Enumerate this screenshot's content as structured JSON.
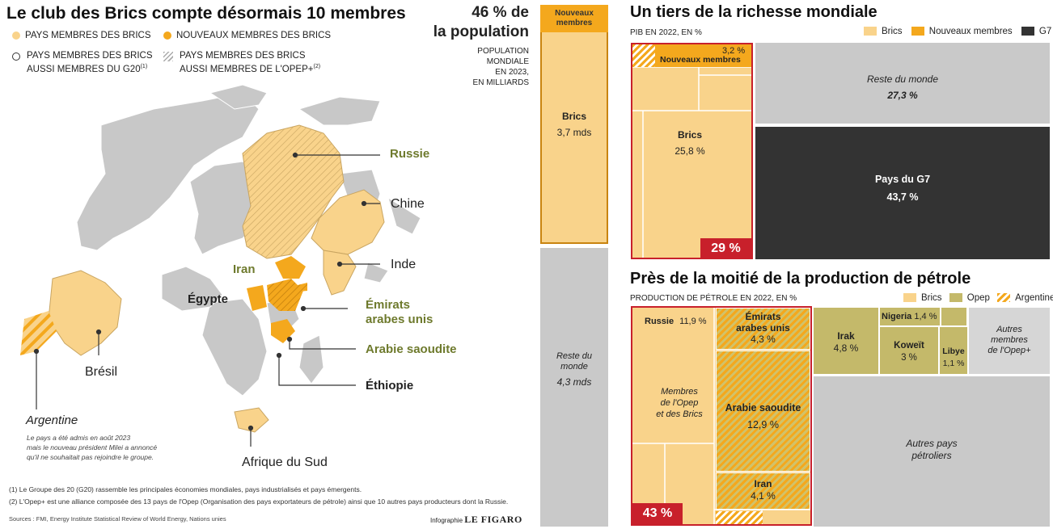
{
  "left": {
    "title": "Le club des Brics compte désormais 10 membres",
    "legend": [
      {
        "label": "PAYS MEMBRES DES BRICS",
        "color": "#f9d38b",
        "icon": "circle-filled-light"
      },
      {
        "label": "NOUVEAUX MEMBRES DES BRICS",
        "color": "#f4a81d",
        "icon": "circle-filled-orange"
      },
      {
        "label_line1": "PAYS MEMBRES DES BRICS",
        "label_line2": "AUSSI MEMBRES DU G20",
        "sup": "(1)",
        "icon": "circle-outline"
      },
      {
        "label_line1": "PAYS MEMBRES DES BRICS",
        "label_line2": "AUSSI MEMBRES DE L'OPEP+",
        "sup": "(2)",
        "icon": "hatch-icon"
      }
    ],
    "map_labels": {
      "russie": "Russie",
      "chine": "Chine",
      "inde": "Inde",
      "iran": "Iran",
      "egypte": "Égypte",
      "emirats": "Émirats",
      "emirats2": "arabes unis",
      "arabie": "Arabie saoudite",
      "ethiopie": "Éthiopie",
      "bresil": "Brésil",
      "afrique": "Afrique du Sud",
      "argentine": "Argentine"
    },
    "argentine_note": [
      "Le pays a été admis en août 2023",
      "mais le nouveau président Milei a annoncé",
      "qu'il ne souhaitait pas rejoindre le groupe."
    ],
    "footnotes": [
      "(1) Le Groupe des 20 (G20) rassemble les principales économies mondiales, pays industrialisés et pays émergents.",
      "(2) L'Opep+ est une alliance composée des 13 pays de l'Opep (Organisation des pays exportateurs de pétrole) ainsi que 10 autres pays producteurs dont la Russie."
    ],
    "sources": "Sources : FMI, Energy Institute Statistical Review of World Energy, Nations unies",
    "credit_prefix": "Infographie",
    "credit_brand": "LE FIGARO"
  },
  "population": {
    "headline1": "46 % de",
    "headline2": "la population",
    "sub": [
      "POPULATION",
      "MONDIALE",
      "EN 2023,",
      "EN MILLIARDS"
    ],
    "new_members": [
      "Nouveaux",
      "membres"
    ],
    "brics_label": "Brics",
    "brics_value": "3,7 mds",
    "rest_label": [
      "Reste du",
      "monde"
    ],
    "rest_value": "4,3 mds"
  },
  "gdp": {
    "title": "Un tiers de la richesse mondiale",
    "sub": "PIB EN 2022, EN %",
    "legend": [
      {
        "label": "Brics",
        "color": "#f9d38b"
      },
      {
        "label": "Nouveaux membres",
        "color": "#f4a81d"
      },
      {
        "label": "G7",
        "color": "#333333"
      }
    ],
    "badge": "29 %"
  },
  "oil": {
    "title": "Près de la moitié de la production de pétrole",
    "sub": "PRODUCTION DE PÉTROLE EN 2022, EN %",
    "legend": [
      {
        "label": "Brics",
        "color": "#f9d38b"
      },
      {
        "label": "Opep",
        "color": "#c4b96a"
      },
      {
        "label": "Argentine",
        "color": "#f4a81d"
      }
    ],
    "badge": "43 %",
    "labels": {
      "russie": "Russie",
      "russie_val": "11,9 %",
      "membres": [
        "Membres",
        "de l'Opep",
        "et des Brics"
      ],
      "emirats": [
        "Émirats",
        "arabes unis"
      ],
      "emirats_val": "4,3 %",
      "arabie": "Arabie saoudite",
      "arabie_val": "12,9 %",
      "iran": "Iran",
      "iran_val": "4,1 %",
      "irak": "Irak",
      "irak_val": "4,8 %",
      "nigeria": "Nigeria",
      "nigeria_val": "1,4 %",
      "koweit": "Koweït",
      "koweit_val": "3 %",
      "libye": "Libye",
      "libye_val": "1,1 %",
      "autres_opep": [
        "Autres",
        "membres",
        "de l'Opep+"
      ],
      "autres_pays": [
        "Autres pays",
        "pétroliers"
      ]
    }
  },
  "chart_data": [
    {
      "type": "bar",
      "title": "46 % de la population",
      "subtitle": "POPULATION MONDIALE EN 2023, EN MILLIARDS",
      "categories": [
        "Nouveaux membres",
        "Brics",
        "Reste du monde"
      ],
      "values_labels": [
        "",
        "3,7 mds",
        "4,3 mds"
      ],
      "values": [
        0.2,
        3.7,
        4.3
      ],
      "stacked": true
    },
    {
      "type": "heatmap",
      "title": "Un tiers de la richesse mondiale",
      "subtitle": "PIB EN 2022, EN %",
      "categories": [
        "Brics",
        "Nouveaux membres",
        "Reste du monde",
        "Pays du G7"
      ],
      "values": [
        25.8,
        3.2,
        27.3,
        43.7
      ],
      "value_labels": [
        "25,8 %",
        "3,2 %",
        "27,3 %",
        "43,7 %"
      ],
      "total_brics": 29
    },
    {
      "type": "heatmap",
      "title": "Près de la moitié de la production de pétrole",
      "subtitle": "PRODUCTION DE PÉTROLE EN 2022, EN %",
      "categories": [
        "Russie",
        "Émirats arabes unis",
        "Arabie saoudite",
        "Iran",
        "Irak",
        "Nigeria",
        "Koweït",
        "Libye"
      ],
      "values": [
        11.9,
        4.3,
        12.9,
        4.1,
        4.8,
        1.4,
        3,
        1.1
      ],
      "value_labels": [
        "11,9 %",
        "4,3 %",
        "12,9 %",
        "4,1 %",
        "4,8 %",
        "1,4 %",
        "3 %",
        "1,1 %"
      ],
      "total_brics": 43
    }
  ]
}
